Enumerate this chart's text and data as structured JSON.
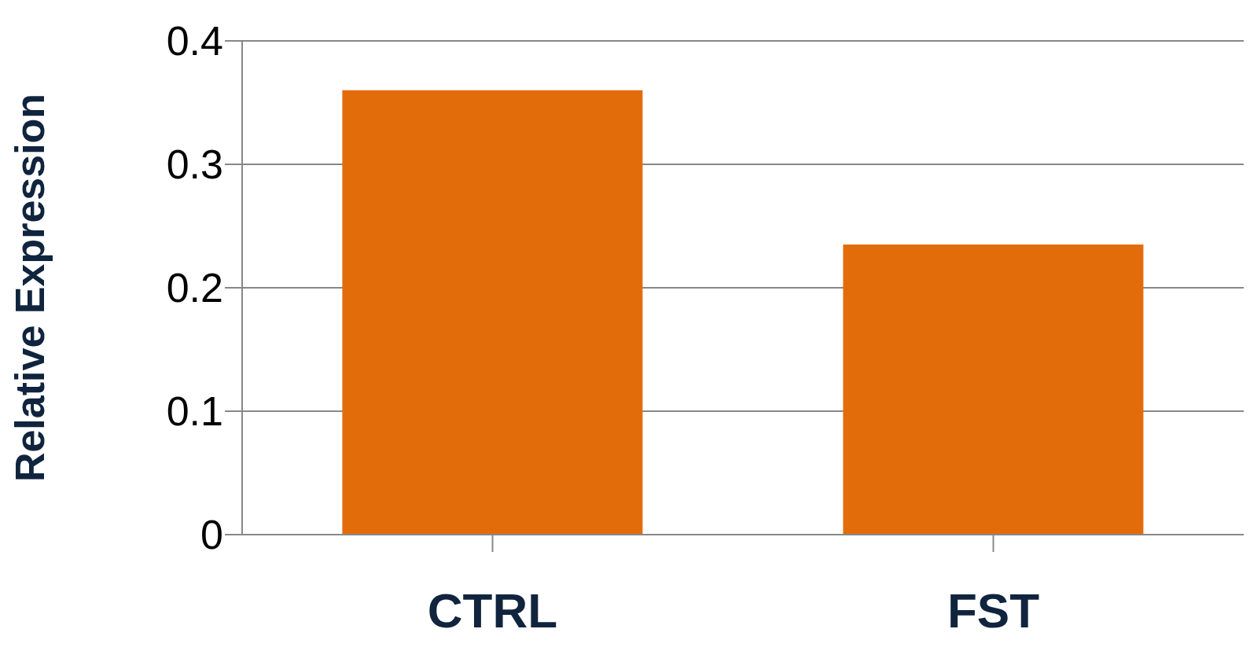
{
  "chart_data": {
    "type": "bar",
    "ylabel": "Relative Expression",
    "categories": [
      "CTRL",
      "FST"
    ],
    "values": [
      0.36,
      0.235
    ],
    "color": "#e36c0a",
    "ylim": [
      0,
      0.4
    ],
    "yticks": [
      0,
      0.1,
      0.2,
      0.3,
      0.4
    ],
    "grid": "y"
  }
}
